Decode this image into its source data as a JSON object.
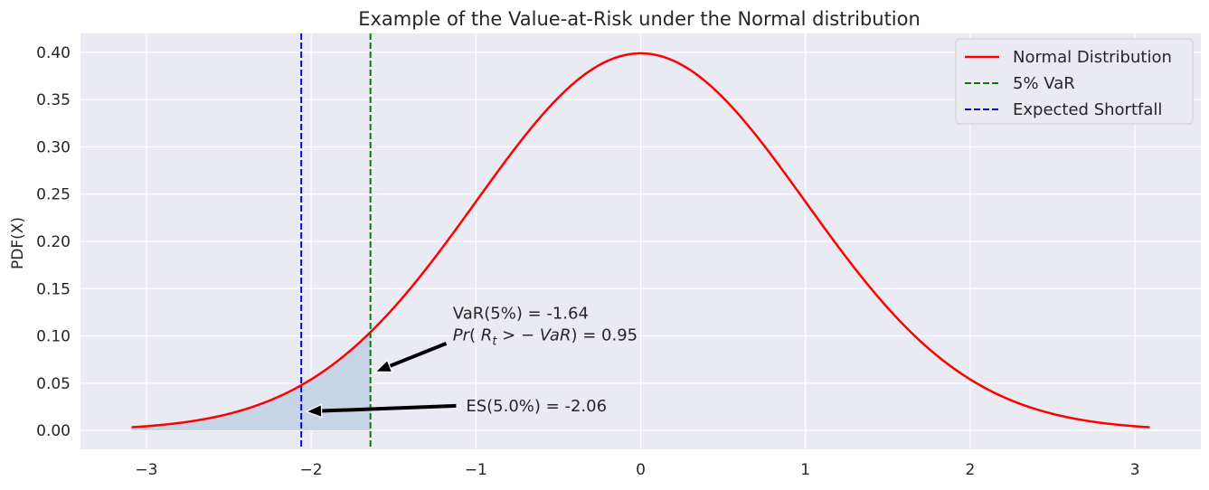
{
  "chart_data": {
    "type": "line",
    "title": "Example of the Value-at-Risk under the Normal distribution",
    "xlabel": "",
    "ylabel": "PDF(X)",
    "xlim": [
      -3.4,
      3.4
    ],
    "ylim": [
      -0.02,
      0.42
    ],
    "x_ticks": [
      -3,
      -2,
      -1,
      0,
      1,
      2,
      3
    ],
    "x_tick_labels": [
      "−3",
      "−2",
      "−1",
      "0",
      "1",
      "2",
      "3"
    ],
    "y_ticks": [
      0.0,
      0.05,
      0.1,
      0.15,
      0.2,
      0.25,
      0.3,
      0.35,
      0.4
    ],
    "y_tick_labels": [
      "0.00",
      "0.05",
      "0.10",
      "0.15",
      "0.20",
      "0.25",
      "0.30",
      "0.35",
      "0.40"
    ],
    "grid": true,
    "legend_position": "top-right",
    "series": [
      {
        "name": "Normal Distribution",
        "distribution": "normal",
        "mean": 0,
        "std": 1,
        "x_range": [
          -3.09,
          3.09
        ],
        "color": "#ff0000"
      }
    ],
    "vlines": [
      {
        "name": "5% VaR",
        "x": -1.64,
        "color": "#008000"
      },
      {
        "name": "Expected Shortfall",
        "x": -2.06,
        "color": "#0000ff"
      }
    ],
    "shaded_region": {
      "x_from": -3.09,
      "x_to": -1.64,
      "color": "#c5d5e6"
    },
    "annotations": [
      {
        "line1": "VaR(5%) = -1.64",
        "line2_parts": [
          "Pr",
          "( ",
          "R",
          "t",
          " > − ",
          "VaR",
          ") = 0.95"
        ],
        "text_x": -1.14,
        "text_y": 0.125,
        "arrow_from": [
          -1.18,
          0.092
        ],
        "arrow_to": [
          -1.61,
          0.062
        ]
      },
      {
        "text": "ES(5.0%) = -2.06",
        "text_x": -1.06,
        "text_y": 0.027,
        "arrow_from": [
          -1.12,
          0.026
        ],
        "arrow_to": [
          -2.03,
          0.02
        ]
      }
    ],
    "plot_background": "#eaeaf2"
  }
}
